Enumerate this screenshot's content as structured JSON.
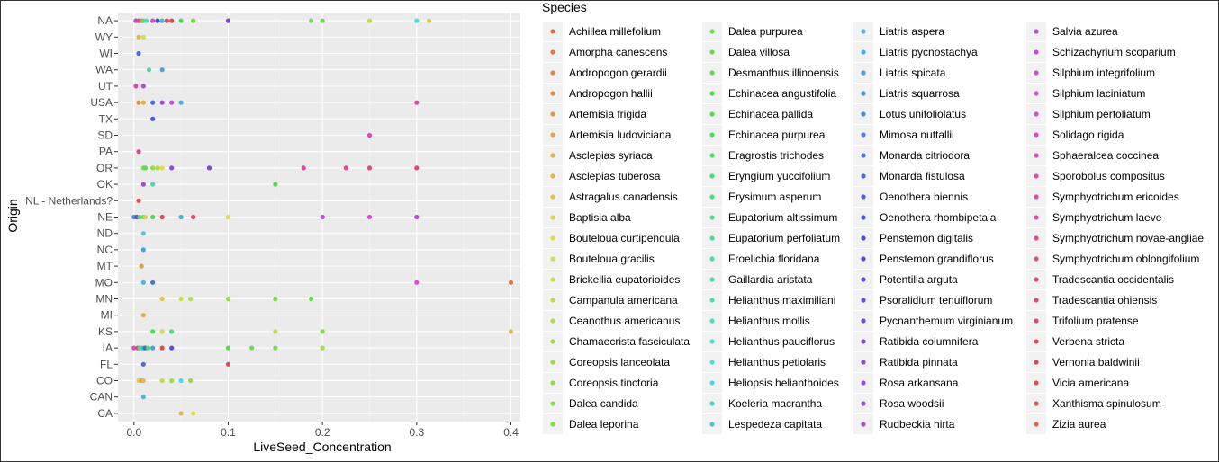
{
  "chart_data": {
    "type": "scatter",
    "xlabel": "LiveSeed_Concentration",
    "ylabel": "Origin",
    "xlim": [
      -0.017,
      0.41
    ],
    "x_ticks": [
      0.0,
      0.1,
      0.2,
      0.3,
      0.4
    ],
    "x_tick_labels": [
      "0.0",
      "0.1",
      "0.2",
      "0.3",
      "0.4"
    ],
    "grid": true,
    "legend_position": "right",
    "legend_title": "Species",
    "categories": [
      "CA",
      "CAN",
      "CO",
      "FL",
      "IA",
      "KS",
      "MI",
      "MN",
      "MO",
      "MT",
      "NC",
      "ND",
      "NE",
      "NL - Netherlands?",
      "OK",
      "OR",
      "PA",
      "SD",
      "TX",
      "USA",
      "UT",
      "WA",
      "WI",
      "WY",
      "NA"
    ],
    "species": [
      "Achillea millefolium",
      "Amorpha canescens",
      "Andropogon gerardii",
      "Andropogon hallii",
      "Artemisia frigida",
      "Artemisia ludoviciana",
      "Asclepias syriaca",
      "Asclepias tuberosa",
      "Astragalus canadensis",
      "Baptisia alba",
      "Bouteloua curtipendula",
      "Bouteloua gracilis",
      "Brickellia eupatorioides",
      "Campanula americana",
      "Ceanothus americanus",
      "Chamaecrista fasciculata",
      "Coreopsis lanceolata",
      "Coreopsis tinctoria",
      "Dalea candida",
      "Dalea leporina",
      "Dalea purpurea",
      "Dalea villosa",
      "Desmanthus illinoensis",
      "Echinacea angustifolia",
      "Echinacea pallida",
      "Echinacea purpurea",
      "Eragrostis trichodes",
      "Eryngium yuccifolium",
      "Erysimum asperum",
      "Eupatorium altissimum",
      "Eupatorium perfoliatum",
      "Froelichia floridana",
      "Gaillardia aristata",
      "Helianthus maximiliani",
      "Helianthus mollis",
      "Helianthus pauciflorus",
      "Helianthus petiolaris",
      "Heliopsis helianthoides",
      "Koeleria macrantha",
      "Lespedeza capitata",
      "Liatris aspera",
      "Liatris pycnostachya",
      "Liatris spicata",
      "Liatris squarrosa",
      "Lotus unifoliolatus",
      "Mimosa nuttallii",
      "Monarda citriodora",
      "Monarda fistulosa",
      "Oenothera biennis",
      "Oenothera rhombipetala",
      "Penstemon digitalis",
      "Penstemon grandiflorus",
      "Potentilla arguta",
      "Psoralidium tenuiflorum",
      "Pycnanthemum virginianum",
      "Ratibida columnifera",
      "Ratibida pinnata",
      "Rosa arkansana",
      "Rosa woodsii",
      "Rudbeckia hirta",
      "Salvia azurea",
      "Schizachyrium scoparium",
      "Silphium integrifolium",
      "Silphium laciniatum",
      "Silphium perfoliatum",
      "Solidago rigida",
      "Sphaeralcea coccinea",
      "Sporobolus compositus",
      "Symphyotrichum ericoides",
      "Symphyotrichum laeve",
      "Symphyotrichum novae-angliae",
      "Symphyotrichum oblongifolium",
      "Tradescantia occidentalis",
      "Tradescantia ohiensis",
      "Trifolium pratense",
      "Verbena stricta",
      "Vernonia baldwinii",
      "Vicia americana",
      "Xanthisma spinulosum",
      "Zizia aurea"
    ],
    "points": [
      {
        "origin": "NA",
        "x": 0.002,
        "species": 60
      },
      {
        "origin": "NA",
        "x": 0.005,
        "species": 70
      },
      {
        "origin": "NA",
        "x": 0.008,
        "species": 2
      },
      {
        "origin": "NA",
        "x": 0.01,
        "species": 22
      },
      {
        "origin": "NA",
        "x": 0.013,
        "species": 34
      },
      {
        "origin": "NA",
        "x": 0.02,
        "species": 66
      },
      {
        "origin": "NA",
        "x": 0.025,
        "species": 50
      },
      {
        "origin": "NA",
        "x": 0.03,
        "species": 40
      },
      {
        "origin": "NA",
        "x": 0.035,
        "species": 74
      },
      {
        "origin": "NA",
        "x": 0.04,
        "species": 77
      },
      {
        "origin": "NA",
        "x": 0.05,
        "species": 24
      },
      {
        "origin": "NA",
        "x": 0.063,
        "species": 21
      },
      {
        "origin": "NA",
        "x": 0.1,
        "species": 54
      },
      {
        "origin": "NA",
        "x": 0.188,
        "species": 19
      },
      {
        "origin": "NA",
        "x": 0.2,
        "species": 20
      },
      {
        "origin": "NA",
        "x": 0.25,
        "species": 13
      },
      {
        "origin": "NA",
        "x": 0.3,
        "species": 36
      },
      {
        "origin": "NA",
        "x": 0.313,
        "species": 9
      },
      {
        "origin": "WY",
        "x": 0.005,
        "species": 7
      },
      {
        "origin": "WY",
        "x": 0.01,
        "species": 11
      },
      {
        "origin": "WI",
        "x": 0.005,
        "species": 47
      },
      {
        "origin": "WA",
        "x": 0.016,
        "species": 32
      },
      {
        "origin": "WA",
        "x": 0.03,
        "species": 42
      },
      {
        "origin": "UT",
        "x": 0.002,
        "species": 68
      },
      {
        "origin": "UT",
        "x": 0.01,
        "species": 59
      },
      {
        "origin": "USA",
        "x": 0.005,
        "species": 3
      },
      {
        "origin": "USA",
        "x": 0.01,
        "species": 6
      },
      {
        "origin": "USA",
        "x": 0.02,
        "species": 47
      },
      {
        "origin": "USA",
        "x": 0.03,
        "species": 58
      },
      {
        "origin": "USA",
        "x": 0.04,
        "species": 62
      },
      {
        "origin": "USA",
        "x": 0.05,
        "species": 41
      },
      {
        "origin": "USA",
        "x": 0.3,
        "species": 69
      },
      {
        "origin": "TX",
        "x": 0.02,
        "species": 49
      },
      {
        "origin": "SD",
        "x": 0.25,
        "species": 67
      },
      {
        "origin": "PA",
        "x": 0.005,
        "species": 70
      },
      {
        "origin": "OR",
        "x": 0.01,
        "species": 19
      },
      {
        "origin": "OR",
        "x": 0.012,
        "species": 22
      },
      {
        "origin": "OR",
        "x": 0.02,
        "species": 17
      },
      {
        "origin": "OR",
        "x": 0.025,
        "species": 15
      },
      {
        "origin": "OR",
        "x": 0.03,
        "species": 10
      },
      {
        "origin": "OR",
        "x": 0.04,
        "species": 56
      },
      {
        "origin": "OR",
        "x": 0.08,
        "species": 54
      },
      {
        "origin": "OR",
        "x": 0.18,
        "species": 68
      },
      {
        "origin": "OR",
        "x": 0.225,
        "species": 70
      },
      {
        "origin": "OR",
        "x": 0.25,
        "species": 72
      },
      {
        "origin": "OR",
        "x": 0.3,
        "species": 74
      },
      {
        "origin": "OK",
        "x": 0.01,
        "species": 58
      },
      {
        "origin": "OK",
        "x": 0.02,
        "species": 33
      },
      {
        "origin": "OK",
        "x": 0.15,
        "species": 23
      },
      {
        "origin": "NL - Netherlands?",
        "x": 0.005,
        "species": 78
      },
      {
        "origin": "NE",
        "x": 0.0,
        "species": 44
      },
      {
        "origin": "NE",
        "x": 0.003,
        "species": 53
      },
      {
        "origin": "NE",
        "x": 0.006,
        "species": 26
      },
      {
        "origin": "NE",
        "x": 0.01,
        "species": 19
      },
      {
        "origin": "NE",
        "x": 0.012,
        "species": 9
      },
      {
        "origin": "NE",
        "x": 0.02,
        "species": 24
      },
      {
        "origin": "NE",
        "x": 0.03,
        "species": 76
      },
      {
        "origin": "NE",
        "x": 0.05,
        "species": 41
      },
      {
        "origin": "NE",
        "x": 0.063,
        "species": 74
      },
      {
        "origin": "NE",
        "x": 0.1,
        "species": 10
      },
      {
        "origin": "NE",
        "x": 0.2,
        "species": 61
      },
      {
        "origin": "NE",
        "x": 0.25,
        "species": 63
      },
      {
        "origin": "NE",
        "x": 0.3,
        "species": 60
      },
      {
        "origin": "ND",
        "x": 0.01,
        "species": 38
      },
      {
        "origin": "NC",
        "x": 0.01,
        "species": 42
      },
      {
        "origin": "MT",
        "x": 0.008,
        "species": 5
      },
      {
        "origin": "MO",
        "x": 0.01,
        "species": 40
      },
      {
        "origin": "MO",
        "x": 0.02,
        "species": 46
      },
      {
        "origin": "MO",
        "x": 0.3,
        "species": 64
      },
      {
        "origin": "MO",
        "x": 0.4,
        "species": 1
      },
      {
        "origin": "MN",
        "x": 0.03,
        "species": 8
      },
      {
        "origin": "MN",
        "x": 0.05,
        "species": 12
      },
      {
        "origin": "MN",
        "x": 0.06,
        "species": 14
      },
      {
        "origin": "MN",
        "x": 0.1,
        "species": 17
      },
      {
        "origin": "MN",
        "x": 0.15,
        "species": 19
      },
      {
        "origin": "MN",
        "x": 0.188,
        "species": 21
      },
      {
        "origin": "MI",
        "x": 0.01,
        "species": 6
      },
      {
        "origin": "KS",
        "x": 0.02,
        "species": 25
      },
      {
        "origin": "KS",
        "x": 0.03,
        "species": 11
      },
      {
        "origin": "KS",
        "x": 0.04,
        "species": 28
      },
      {
        "origin": "KS",
        "x": 0.15,
        "species": 12
      },
      {
        "origin": "KS",
        "x": 0.2,
        "species": 18
      },
      {
        "origin": "KS",
        "x": 0.4,
        "species": 7
      },
      {
        "origin": "IA",
        "x": 0.0,
        "species": 66
      },
      {
        "origin": "IA",
        "x": 0.004,
        "species": 73
      },
      {
        "origin": "IA",
        "x": 0.006,
        "species": 25
      },
      {
        "origin": "IA",
        "x": 0.008,
        "species": 36
      },
      {
        "origin": "IA",
        "x": 0.01,
        "species": 41
      },
      {
        "origin": "IA",
        "x": 0.012,
        "species": 48
      },
      {
        "origin": "IA",
        "x": 0.015,
        "species": 27
      },
      {
        "origin": "IA",
        "x": 0.02,
        "species": 42
      },
      {
        "origin": "IA",
        "x": 0.03,
        "species": 76
      },
      {
        "origin": "IA",
        "x": 0.04,
        "species": 52
      },
      {
        "origin": "IA",
        "x": 0.1,
        "species": 22
      },
      {
        "origin": "IA",
        "x": 0.125,
        "species": 20
      },
      {
        "origin": "IA",
        "x": 0.15,
        "species": 19
      },
      {
        "origin": "IA",
        "x": 0.2,
        "species": 15
      },
      {
        "origin": "FL",
        "x": 0.01,
        "species": 47
      },
      {
        "origin": "FL",
        "x": 0.1,
        "species": 75
      },
      {
        "origin": "CO",
        "x": 0.005,
        "species": 9
      },
      {
        "origin": "CO",
        "x": 0.008,
        "species": 4
      },
      {
        "origin": "CO",
        "x": 0.01,
        "species": 7
      },
      {
        "origin": "CO",
        "x": 0.03,
        "species": 13
      },
      {
        "origin": "CO",
        "x": 0.04,
        "species": 16
      },
      {
        "origin": "CO",
        "x": 0.05,
        "species": 37
      },
      {
        "origin": "CO",
        "x": 0.06,
        "species": 17
      },
      {
        "origin": "CAN",
        "x": 0.01,
        "species": 40
      },
      {
        "origin": "CA",
        "x": 0.05,
        "species": 7
      },
      {
        "origin": "CA",
        "x": 0.063,
        "species": 10
      }
    ]
  }
}
